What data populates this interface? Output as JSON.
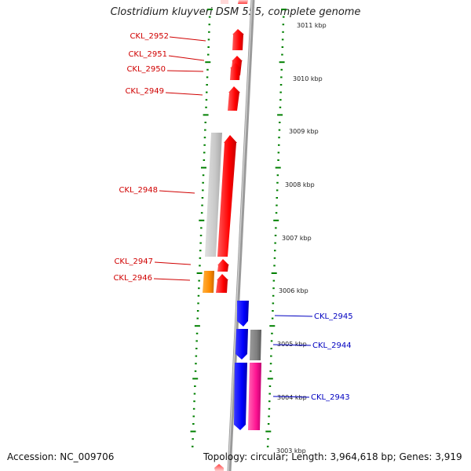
{
  "title": "Clostridium kluyveri DSM 555, complete genome",
  "accession": "Accession: NC_009706",
  "topology": "Topology: circular; Length: 3,964,618 bp; Genes: 3,919",
  "colors": {
    "forward_gene": "#ff0000",
    "reverse_gene": "#0000ff",
    "pseudo_gray": "#c8c8c8",
    "dark_gray": "#808080",
    "orange": "#ff8c00",
    "pink": "#ff1493",
    "ticks": "#008000",
    "backbone": "#9a9a9a"
  },
  "kbp_labels": [
    "3011 kbp",
    "3010 kbp",
    "3009 kbp",
    "3008 kbp",
    "3007 kbp",
    "3006 kbp",
    "3005 kbp",
    "3004 kbp",
    "3003 kbp"
  ],
  "genes_left": [
    {
      "name": "CKL_2952"
    },
    {
      "name": "CKL_2951"
    },
    {
      "name": "CKL_2950"
    },
    {
      "name": "CKL_2949"
    },
    {
      "name": "CKL_2948"
    },
    {
      "name": "CKL_2947"
    },
    {
      "name": "CKL_2946"
    }
  ],
  "genes_right": [
    {
      "name": "CKL_2945"
    },
    {
      "name": "CKL_2944"
    },
    {
      "name": "CKL_2943"
    }
  ]
}
